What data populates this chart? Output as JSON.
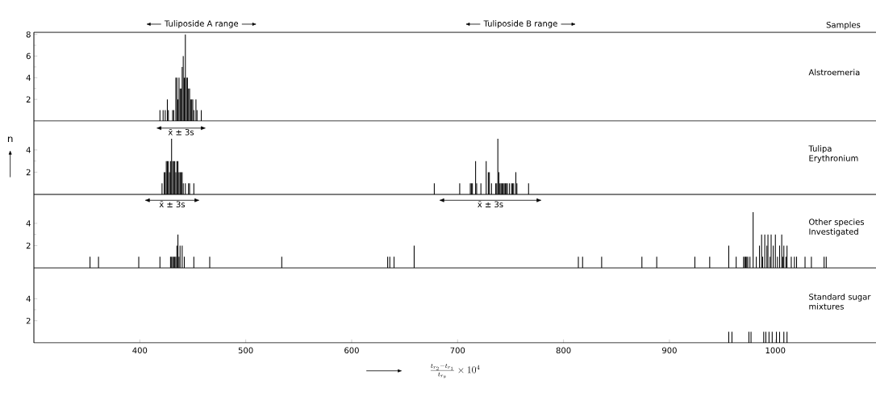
{
  "chart_data": [
    {
      "type": "bar",
      "title": "Alstroemeria",
      "color": "#000000",
      "x": [
        419,
        422,
        424,
        426,
        427,
        431,
        432,
        434,
        435,
        436,
        437,
        438,
        439,
        440,
        441,
        442,
        443,
        444,
        445,
        446,
        447,
        448,
        449,
        450,
        451,
        453,
        454,
        458
      ],
      "values": [
        1,
        1,
        1,
        2,
        1,
        1,
        1,
        4,
        4,
        2,
        4,
        3,
        3,
        5,
        6,
        4,
        8,
        4,
        4,
        3,
        3,
        2,
        2,
        2,
        1,
        2,
        1,
        1
      ],
      "xlim": [
        300,
        1095
      ],
      "ylim": [
        0,
        8.2
      ],
      "yticks": [
        2,
        4,
        6,
        8
      ],
      "tick_labels": "y",
      "annotations": [
        "Tuliposide A range",
        "Tuliposide B range",
        "Samples",
        "x̄ ± 3s"
      ]
    },
    {
      "type": "bar",
      "title": "Tulipa Erythronium",
      "ylabel": "n",
      "color": "#000000",
      "x": [
        421,
        423,
        424,
        425,
        426,
        427,
        428,
        429,
        430,
        431,
        432,
        433,
        434,
        435,
        436,
        437,
        438,
        439,
        440,
        441,
        443,
        446,
        447,
        451,
        678,
        702,
        712,
        713,
        714,
        717,
        718,
        722,
        727,
        729,
        730,
        732,
        736,
        737,
        738,
        739,
        740,
        741,
        742,
        743,
        744,
        745,
        746,
        747,
        749,
        751,
        752,
        753,
        755,
        756,
        767
      ],
      "values": [
        1,
        2,
        2,
        3,
        3,
        3,
        2,
        3,
        5,
        3,
        3,
        3,
        2,
        3,
        3,
        2,
        2,
        2,
        2,
        1,
        1,
        1,
        1,
        1,
        1,
        1,
        1,
        1,
        1,
        3,
        1,
        1,
        3,
        2,
        2,
        1,
        1,
        1,
        5,
        2,
        1,
        1,
        1,
        1,
        1,
        1,
        1,
        1,
        1,
        1,
        1,
        1,
        2,
        1,
        1
      ],
      "xlim": [
        300,
        1095
      ],
      "ylim": [
        0,
        6.6
      ],
      "yticks": [
        2,
        4
      ],
      "tick_labels": "y",
      "annotations": [
        "x̄ ± 3s",
        "x̄ ± 3s"
      ]
    },
    {
      "type": "bar",
      "title": "Other species Investigated",
      "color": "#000000",
      "x": [
        353,
        361,
        399,
        419,
        429,
        430,
        431,
        432,
        433,
        434,
        435,
        436,
        437,
        438,
        440,
        442,
        451,
        466,
        534,
        634,
        636,
        640,
        659,
        814,
        818,
        836,
        874,
        888,
        924,
        938,
        956,
        963,
        970,
        971,
        972,
        973,
        974,
        976,
        979,
        982,
        985,
        987,
        988,
        990,
        992,
        993,
        995,
        996,
        998,
        1000,
        1002,
        1004,
        1006,
        1007,
        1008,
        1010,
        1011,
        1015,
        1018,
        1020,
        1028,
        1034,
        1046,
        1048
      ],
      "values": [
        1,
        1,
        1,
        1,
        1,
        1,
        1,
        1,
        1,
        1,
        2,
        3,
        1,
        2,
        2,
        1,
        1,
        1,
        1,
        1,
        1,
        1,
        2,
        1,
        1,
        1,
        1,
        1,
        1,
        1,
        2,
        1,
        1,
        1,
        1,
        1,
        1,
        1,
        5,
        1,
        2,
        3,
        1,
        3,
        2,
        3,
        1,
        3,
        2,
        3,
        1,
        2,
        3,
        1,
        2,
        1,
        2,
        1,
        1,
        1,
        1,
        1,
        1,
        1
      ],
      "xlim": [
        300,
        1095
      ],
      "ylim": [
        0,
        6.6
      ],
      "yticks": [
        2,
        4
      ],
      "tick_labels": "y"
    },
    {
      "type": "bar",
      "title": "Standard sugar mixtures",
      "color": "#000000",
      "xlabel": "\\frac{t_{r_2}-t_{r_1}}{t_{r_s}}\\times 10^4",
      "x": [
        956,
        959,
        975,
        977,
        989,
        991,
        994,
        997,
        1001,
        1004,
        1008,
        1011
      ],
      "values": [
        1,
        1,
        1,
        1,
        1,
        1,
        1,
        1,
        1,
        1,
        1,
        1
      ],
      "xlim": [
        300,
        1095
      ],
      "ylim": [
        0,
        6.8
      ],
      "yticks": [
        2,
        4
      ],
      "xticks": [
        400,
        500,
        600,
        700,
        800,
        900,
        1000
      ]
    }
  ]
}
